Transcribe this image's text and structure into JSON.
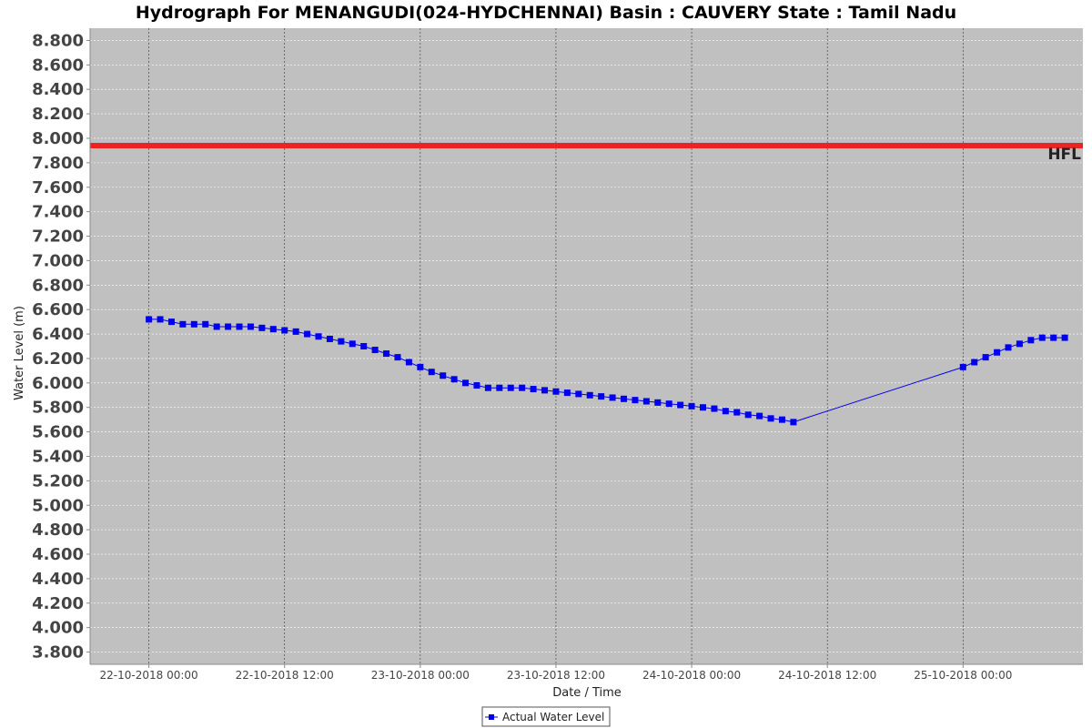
{
  "chart_data": {
    "type": "line",
    "title": "Hydrograph For MENANGUDI(024-HYDCHENNAI) Basin : CAUVERY State : Tamil Nadu",
    "xlabel": "Date / Time",
    "ylabel": "Water Level (m)",
    "ylim": [
      3.7,
      8.9
    ],
    "xlim_hours": [
      -5.2,
      82.6
    ],
    "y_ticks": [
      "3.800",
      "4.000",
      "4.200",
      "4.400",
      "4.600",
      "4.800",
      "5.000",
      "5.200",
      "5.400",
      "5.600",
      "5.800",
      "6.000",
      "6.200",
      "6.400",
      "6.600",
      "6.800",
      "7.000",
      "7.200",
      "7.400",
      "7.600",
      "7.800",
      "8.000",
      "8.200",
      "8.400",
      "8.600",
      "8.800"
    ],
    "x_ticks": [
      "22-10-2018 00:00",
      "22-10-2018 12:00",
      "23-10-2018 00:00",
      "23-10-2018 12:00",
      "24-10-2018 00:00",
      "24-10-2018 12:00",
      "25-10-2018 00:00"
    ],
    "grid": true,
    "legend_position": "bottom-center",
    "hfl": {
      "label": "HFL",
      "value": 7.94,
      "color": "#ee2222"
    },
    "series": [
      {
        "name": "Actual Water Level",
        "color": "#0000ee",
        "marker": "square",
        "x_hours": [
          0,
          1,
          2,
          3,
          4,
          5,
          6,
          7,
          8,
          9,
          10,
          11,
          12,
          13,
          14,
          15,
          16,
          17,
          18,
          19,
          20,
          21,
          22,
          23,
          24,
          25,
          26,
          27,
          28,
          29,
          30,
          31,
          32,
          33,
          34,
          35,
          36,
          37,
          38,
          39,
          40,
          41,
          42,
          43,
          44,
          45,
          46,
          47,
          48,
          49,
          50,
          51,
          52,
          53,
          54,
          55,
          56,
          57,
          72,
          73,
          74,
          75,
          76,
          77,
          78,
          79,
          80,
          81
        ],
        "values": [
          6.52,
          6.52,
          6.5,
          6.48,
          6.48,
          6.48,
          6.46,
          6.46,
          6.46,
          6.46,
          6.45,
          6.44,
          6.43,
          6.42,
          6.4,
          6.38,
          6.36,
          6.34,
          6.32,
          6.3,
          6.27,
          6.24,
          6.21,
          6.17,
          6.13,
          6.09,
          6.06,
          6.03,
          6.0,
          5.98,
          5.96,
          5.96,
          5.96,
          5.96,
          5.95,
          5.94,
          5.93,
          5.92,
          5.91,
          5.9,
          5.89,
          5.88,
          5.87,
          5.86,
          5.85,
          5.84,
          5.83,
          5.82,
          5.81,
          5.8,
          5.79,
          5.77,
          5.76,
          5.74,
          5.73,
          5.71,
          5.7,
          5.68,
          6.13,
          6.17,
          6.21,
          6.25,
          6.29,
          6.32,
          6.35,
          6.37,
          6.37,
          6.37
        ]
      }
    ]
  }
}
